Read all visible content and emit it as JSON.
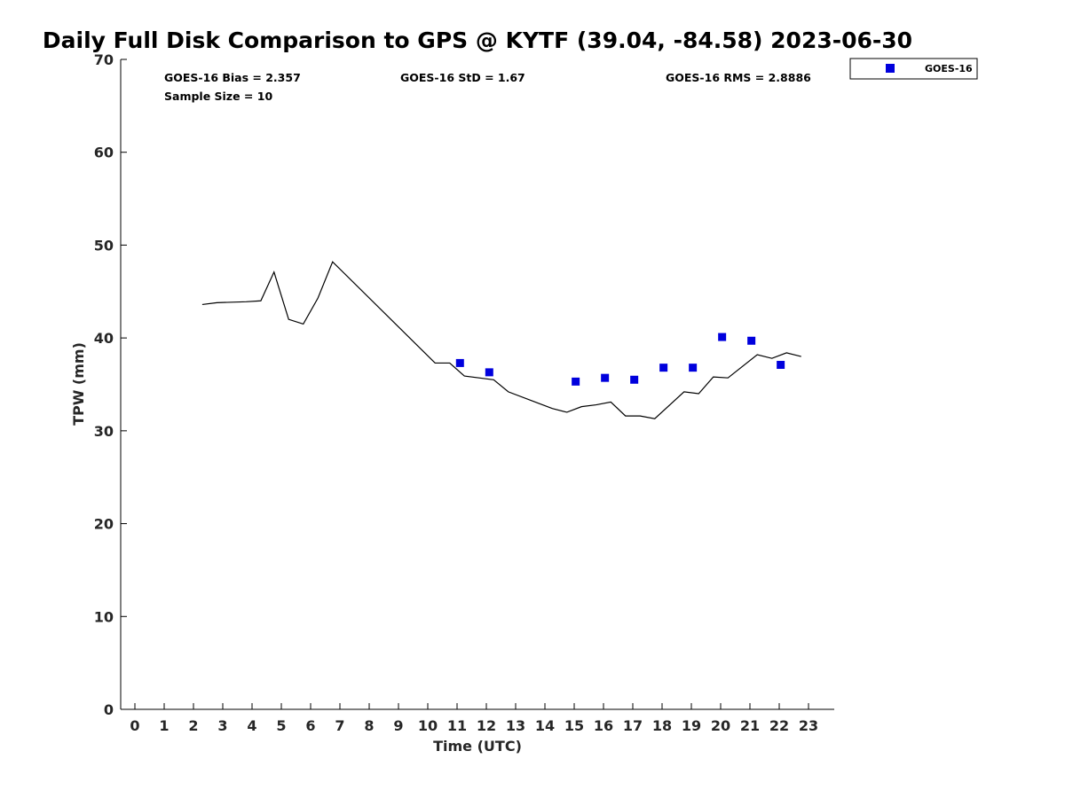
{
  "chart_data": {
    "type": "scatter",
    "title": "Daily Full Disk Comparison to GPS @ KYTF (39.04, -84.58) 2023-06-30",
    "xlabel": "Time (UTC)",
    "ylabel": "TPW (mm)",
    "xlim": [
      -0.5,
      23.8
    ],
    "ylim": [
      0,
      70
    ],
    "x_ticks": [
      0,
      1,
      2,
      3,
      4,
      5,
      6,
      7,
      8,
      9,
      10,
      11,
      12,
      13,
      14,
      15,
      16,
      17,
      18,
      19,
      20,
      21,
      22,
      23
    ],
    "y_ticks": [
      0,
      10,
      20,
      30,
      40,
      50,
      60,
      70
    ],
    "grid": false,
    "legend_position": "top-right, outside plot",
    "stats": {
      "bias": "GOES-16 Bias = 2.357",
      "std": "GOES-16 StD = 1.67",
      "rms": "GOES-16 RMS = 2.8886",
      "sample": "Sample Size = 10"
    },
    "reference_line": {
      "color": "#000000",
      "x": [
        2.3,
        2.8,
        3.8,
        4.3,
        4.75,
        5.25,
        5.75,
        6.25,
        6.75,
        10.25,
        10.75,
        11.25,
        12.25,
        12.75,
        13.75,
        14.25,
        14.75,
        15.25,
        15.75,
        16.25,
        16.75,
        17.25,
        17.75,
        18.75,
        19.25,
        19.75,
        20.25,
        21.25,
        21.75,
        22.25,
        22.75
      ],
      "y": [
        43.6,
        43.8,
        43.9,
        44.0,
        47.1,
        42.0,
        41.5,
        44.3,
        48.2,
        37.3,
        37.3,
        35.9,
        35.5,
        34.2,
        33.0,
        32.4,
        32.0,
        32.6,
        32.8,
        33.1,
        31.6,
        31.6,
        31.3,
        34.2,
        34.0,
        35.8,
        35.7,
        38.2,
        37.8,
        38.4,
        38.0
      ]
    },
    "series": [
      {
        "name": "GOES-16",
        "color": "#0000dd",
        "x": [
          11.1,
          12.1,
          15.05,
          16.05,
          17.05,
          18.05,
          19.05,
          20.05,
          21.05,
          22.05
        ],
        "y": [
          37.3,
          36.3,
          35.3,
          35.7,
          35.5,
          36.8,
          36.8,
          40.1,
          39.7,
          37.1
        ]
      }
    ]
  }
}
